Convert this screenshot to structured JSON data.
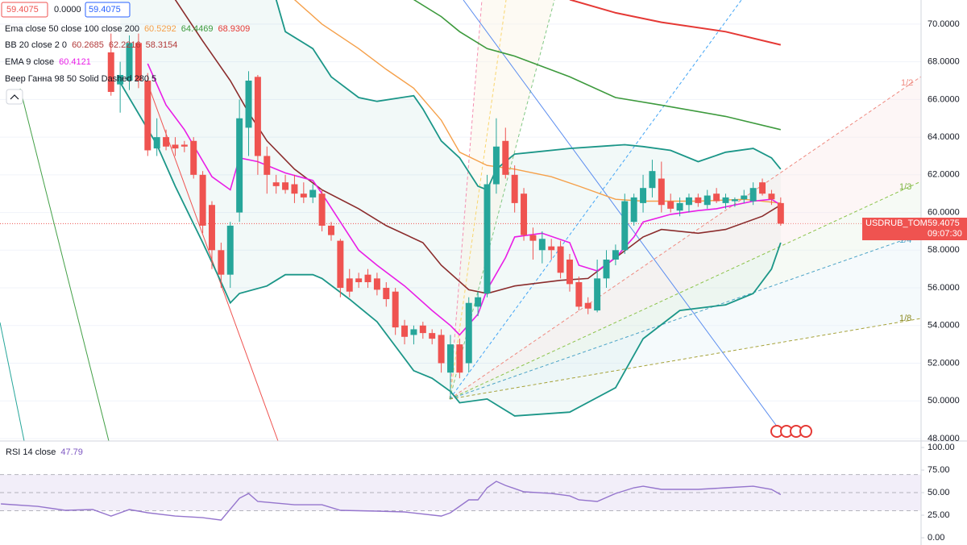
{
  "chart_data": {
    "type": "candlestick",
    "symbol": "USDRUB_TOM",
    "countdown": "09:07:30",
    "change": "0.0000",
    "up_color": "#26a69a",
    "down_color": "#ef5350",
    "xlim": [
      -12.1,
      88.3
    ],
    "ylim": [
      47.87,
      71.28
    ],
    "yticks": [
      {
        "value": 48,
        "label": "48.0000"
      },
      {
        "value": 50,
        "label": "50.0000"
      },
      {
        "value": 52,
        "label": "52.0000"
      },
      {
        "value": 54,
        "label": "54.0000"
      },
      {
        "value": 56,
        "label": "56.0000"
      },
      {
        "value": 58,
        "label": "58.0000"
      },
      {
        "value": 60,
        "label": "60.0000"
      },
      {
        "value": 62,
        "label": "62.0000"
      },
      {
        "value": 64,
        "label": "64.0000"
      },
      {
        "value": 66,
        "label": "66.0000"
      },
      {
        "value": 68,
        "label": "68.0000"
      },
      {
        "value": 70,
        "label": "70.0000"
      }
    ],
    "grid": true,
    "open": [
      68.5,
      66.8,
      67.0,
      69.0,
      67.0,
      63.4,
      64.0,
      63.6,
      63.6,
      63.8,
      62.0,
      60.4,
      58.0,
      56.7,
      60.0,
      64.5,
      67.2,
      63.0,
      61.6,
      61.6,
      61.5,
      61.0,
      60.8,
      61.0,
      59.3,
      58.5,
      56.5,
      56.5,
      56.7,
      56.5,
      56.0,
      55.8,
      54.0,
      53.5,
      54.0,
      53.6,
      53.5,
      51.5,
      53.0,
      52.0,
      55.0,
      55.7,
      61.5,
      63.8,
      62.0,
      61.0,
      58.8,
      58.0,
      58.2,
      58.2,
      57.5,
      56.3,
      55.2,
      54.8,
      56.5,
      57.5,
      58.0,
      59.5,
      60.5,
      61.3,
      61.8,
      60.6,
      60.1,
      60.4,
      60.8,
      60.4,
      61.0,
      60.5,
      60.6,
      60.7,
      60.6,
      61.6,
      61.0,
      60.5
    ],
    "high": [
      69.5,
      68.0,
      69.4,
      69.5,
      67.4,
      65.0,
      64.4,
      64.0,
      63.8,
      64.0,
      62.2,
      60.6,
      58.4,
      59.5,
      66.0,
      67.5,
      67.3,
      63.5,
      62.0,
      62.0,
      62.0,
      61.6,
      61.5,
      61.2,
      59.5,
      58.6,
      57.0,
      56.8,
      57.0,
      56.8,
      56.3,
      56.0,
      54.3,
      54.0,
      54.2,
      53.8,
      53.8,
      53.5,
      53.3,
      55.5,
      55.8,
      62.0,
      65.0,
      64.5,
      62.5,
      61.3,
      59.2,
      59.0,
      58.6,
      58.5,
      57.8,
      56.6,
      55.5,
      57.5,
      58.0,
      58.3,
      61.0,
      61.0,
      62.0,
      62.8,
      62.7,
      61.0,
      60.8,
      61.0,
      61.0,
      61.2,
      61.3,
      61.0,
      60.8,
      61.2,
      61.6,
      61.8,
      61.2,
      60.8
    ],
    "low": [
      66.2,
      65.3,
      66.5,
      66.6,
      63.0,
      63.0,
      63.3,
      63.0,
      63.2,
      61.8,
      58.9,
      57.0,
      56.0,
      56.0,
      59.5,
      63.0,
      62.0,
      61.0,
      61.0,
      61.0,
      60.5,
      60.5,
      60.5,
      59.0,
      58.5,
      55.5,
      55.5,
      56.0,
      56.0,
      55.6,
      55.0,
      53.5,
      53.0,
      53.0,
      53.3,
      53.0,
      51.5,
      50.1,
      51.2,
      51.5,
      54.5,
      55.5,
      61.0,
      61.8,
      60.0,
      58.5,
      57.5,
      57.3,
      57.5,
      56.5,
      55.8,
      54.8,
      54.6,
      54.7,
      56.0,
      57.2,
      57.8,
      59.3,
      60.0,
      60.8,
      60.0,
      60.0,
      59.8,
      60.0,
      60.3,
      60.2,
      60.5,
      60.2,
      60.3,
      60.5,
      60.4,
      60.9,
      60.4,
      59.3
    ],
    "close": [
      66.4,
      67.3,
      69.0,
      67.0,
      63.3,
      64.0,
      63.5,
      63.4,
      63.5,
      62.0,
      59.3,
      58.0,
      56.7,
      59.3,
      65.0,
      67.0,
      63.0,
      62.0,
      61.4,
      61.2,
      61.0,
      60.8,
      61.2,
      59.3,
      58.8,
      56.0,
      55.8,
      56.3,
      56.3,
      55.9,
      55.4,
      53.9,
      53.4,
      53.8,
      53.6,
      53.3,
      52.0,
      53.0,
      51.5,
      55.2,
      55.5,
      61.5,
      63.5,
      62.0,
      60.5,
      58.8,
      58.5,
      58.6,
      58.0,
      56.8,
      56.2,
      55.0,
      54.9,
      56.5,
      57.5,
      58.0,
      60.6,
      60.8,
      61.3,
      62.2,
      60.4,
      60.2,
      60.5,
      60.8,
      60.5,
      60.9,
      60.6,
      60.8,
      60.7,
      60.9,
      61.3,
      61.0,
      60.7,
      59.4075
    ],
    "indicators": [
      {
        "label": "Ema close 50 close 100 close 200",
        "values": [
          60.5292,
          64.4469,
          68.9309
        ],
        "colors": [
          "#f5a04a",
          "#3d9a3d",
          "#e53935"
        ]
      },
      {
        "label": "BB 20 close 2 0",
        "values": [
          60.2685,
          62.2216,
          58.3154
        ],
        "colors": [
          "#b23a3a",
          "#b23a3a",
          "#b23a3a"
        ]
      },
      {
        "label": "EMA 9 close",
        "values": [
          60.4121
        ],
        "colors": [
          "#e91ee6"
        ]
      },
      {
        "label": "Веер Ганна 98 50 Solid Dashed 280 5",
        "values": [],
        "colors": []
      }
    ],
    "overlays": [
      {
        "color": "#e53935",
        "width": 2,
        "x": [
          50,
          55,
          60,
          67,
          73
        ],
        "values": [
          71.3,
          70.6,
          70.1,
          69.6,
          68.9
        ]
      },
      {
        "color": "#3d9a3d",
        "width": 1.6,
        "x": [
          33,
          36,
          38,
          41,
          44,
          50,
          55,
          60,
          67,
          73
        ],
        "values": [
          71.3,
          70.4,
          69.6,
          68.7,
          68.3,
          67.2,
          66.1,
          65.7,
          65.1,
          64.4
        ]
      },
      {
        "color": "#f5a04a",
        "width": 1.4,
        "x": [
          20,
          23,
          27,
          30,
          33,
          36,
          38,
          41,
          44,
          48,
          51,
          55,
          58,
          64,
          69,
          73
        ],
        "values": [
          71.3,
          70.0,
          68.7,
          67.6,
          66.6,
          64.9,
          63.2,
          62.5,
          62.3,
          61.9,
          61.4,
          60.7,
          60.6,
          60.6,
          60.7,
          60.5
        ]
      },
      {
        "color": "#1b9688",
        "width": 1.8,
        "x": [
          18,
          19,
          22,
          24,
          27,
          29,
          33,
          34,
          36,
          38,
          40,
          41,
          42,
          44,
          46,
          50,
          53,
          56,
          58,
          61,
          64,
          67,
          70,
          72,
          73
        ],
        "values": [
          71.3,
          69.6,
          68.7,
          67.2,
          66.1,
          65.9,
          66.2,
          65.5,
          63.8,
          62.9,
          61.4,
          61.2,
          62.3,
          63.1,
          63.2,
          63.4,
          63.5,
          63.6,
          63.5,
          63.3,
          62.7,
          63.2,
          63.4,
          62.9,
          62.3
        ]
      },
      {
        "color": "#1b9688",
        "width": 1.8,
        "x": [
          1,
          5,
          7,
          10,
          12,
          13,
          14,
          17,
          19,
          22,
          23,
          26,
          29,
          31,
          33,
          35,
          37,
          38,
          41,
          44,
          50,
          55,
          58,
          62,
          67,
          70,
          72,
          73
        ],
        "values": [
          66.9,
          63.6,
          61.4,
          58.4,
          56.3,
          55.2,
          55.7,
          56.1,
          56.7,
          56.7,
          56.5,
          55.4,
          54.2,
          52.9,
          51.6,
          51.2,
          50.5,
          49.9,
          50.1,
          49.2,
          49.4,
          50.7,
          53.3,
          54.8,
          55.1,
          55.7,
          57.0,
          58.4
        ]
      },
      {
        "color": "#8b2c2c",
        "width": 1.6,
        "x": [
          7,
          10,
          13,
          15,
          17,
          20,
          23,
          27,
          30,
          34,
          36,
          39,
          41,
          44,
          49,
          52,
          55,
          58,
          60,
          64,
          67,
          71,
          73
        ],
        "values": [
          71.3,
          69.1,
          67.0,
          65.3,
          63.8,
          62.3,
          61.2,
          60.2,
          59.3,
          58.4,
          57.2,
          55.9,
          55.7,
          56.1,
          56.4,
          56.5,
          57.6,
          58.7,
          59.1,
          58.9,
          59.1,
          59.8,
          60.4
        ]
      },
      {
        "color": "#e91ee6",
        "width": 1.6,
        "x": [
          4,
          6,
          8,
          11,
          13,
          14,
          16,
          19,
          22,
          23,
          25,
          27,
          29,
          32,
          35,
          37,
          38,
          40,
          41,
          43,
          44,
          47,
          50,
          51,
          53,
          55,
          57,
          58,
          61,
          64,
          66,
          70,
          72,
          73
        ],
        "values": [
          67.9,
          65.7,
          64.4,
          61.9,
          61.2,
          62.9,
          62.7,
          62.1,
          61.7,
          61.0,
          59.5,
          58.0,
          57.2,
          56.1,
          54.8,
          54.0,
          53.5,
          54.6,
          55.9,
          57.6,
          58.7,
          58.9,
          58.4,
          57.2,
          56.9,
          57.6,
          58.7,
          59.5,
          59.9,
          60.1,
          60.2,
          60.6,
          60.7,
          60.4
        ]
      }
    ],
    "fan_labels": [
      "1/2",
      "1/3",
      "1/4",
      "1/8"
    ],
    "rsi": {
      "label": "RSI 14 close",
      "value": 47.79,
      "color": "#9575cd",
      "ylim": [
        -8,
        106.3
      ],
      "yticks": [
        {
          "value": 0,
          "label": "0.00"
        },
        {
          "value": 25,
          "label": "25.00"
        },
        {
          "value": 50,
          "label": "50.00"
        },
        {
          "value": 75,
          "label": "75.00"
        },
        {
          "value": 100,
          "label": "100.00"
        }
      ],
      "bands": [
        30,
        50,
        70
      ],
      "x": [
        -12,
        -8,
        -5,
        -2,
        0,
        2,
        4,
        7,
        10,
        12,
        14,
        15,
        16,
        20,
        23,
        25,
        29,
        32,
        36,
        37,
        39,
        40,
        41,
        42,
        43,
        45,
        48,
        50,
        51,
        53,
        55,
        57,
        58,
        60,
        64,
        67,
        70,
        72,
        73
      ],
      "values": [
        37.5,
        34.8,
        30.4,
        31.3,
        24.1,
        31.3,
        27.7,
        24.1,
        22.3,
        19.6,
        43.8,
        49.1,
        40.2,
        36.6,
        36.6,
        30.4,
        29.5,
        28.6,
        24.1,
        27.7,
        42.0,
        42.0,
        55.4,
        62.5,
        58.0,
        50.9,
        49.1,
        46.4,
        42.0,
        40.2,
        49.1,
        55.4,
        57.1,
        53.6,
        53.6,
        55.4,
        57.1,
        53.6,
        47.79
      ]
    }
  }
}
